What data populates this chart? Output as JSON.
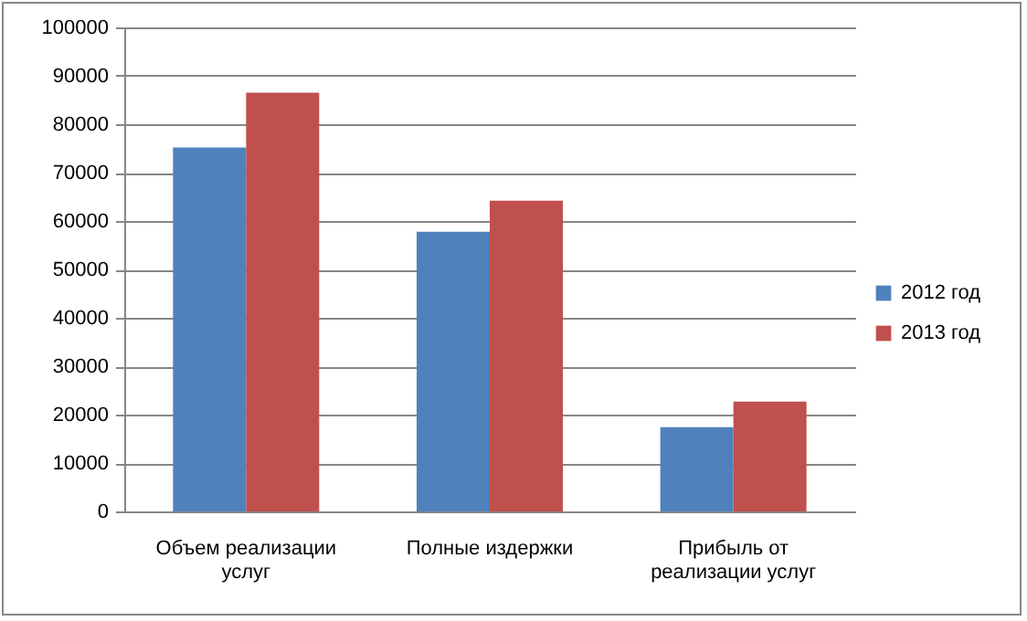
{
  "chart_data": {
    "type": "bar",
    "categories": [
      "Объем реализации услуг",
      "Полные издержки",
      "Прибыль от реализации услуг"
    ],
    "series": [
      {
        "name": "2012 год",
        "color": "#4f81bd",
        "values": [
          75200,
          57800,
          17400
        ]
      },
      {
        "name": "2013 год",
        "color": "#c0504d",
        "values": [
          86500,
          64200,
          22700
        ]
      }
    ],
    "ylim": [
      0,
      100000
    ],
    "yticks": [
      0,
      10000,
      20000,
      30000,
      40000,
      50000,
      60000,
      70000,
      80000,
      90000,
      100000
    ],
    "grid": "y",
    "legend": "right"
  }
}
